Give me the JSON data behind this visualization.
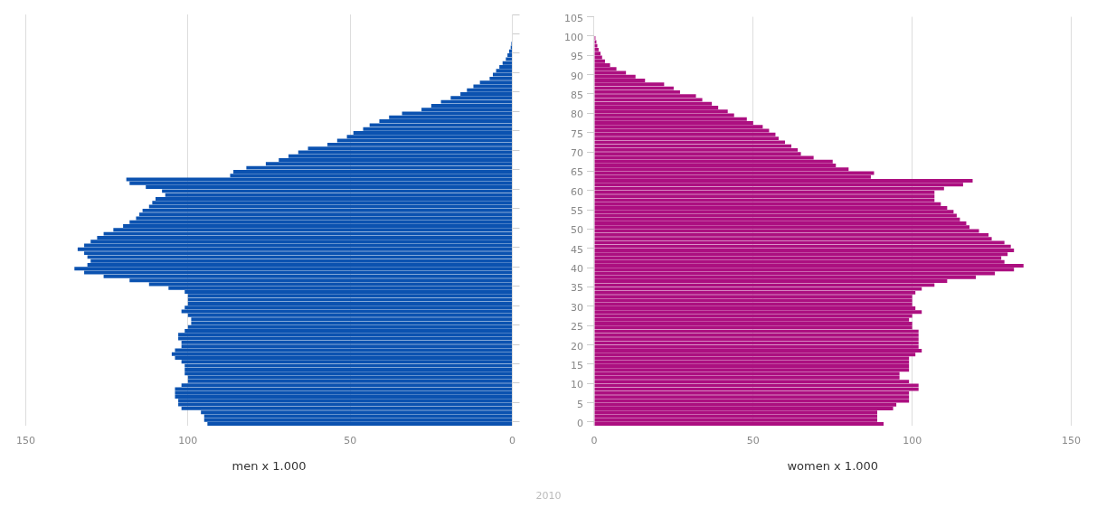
{
  "chart_data": [
    {
      "type": "bar",
      "orientation": "horizontal",
      "xlabel": "men x 1.000",
      "annotations": [
        "2010"
      ],
      "categories": [
        "105",
        null,
        null,
        null,
        null,
        "100",
        null,
        null,
        null,
        null,
        "95",
        null,
        null,
        null,
        null,
        "90",
        null,
        null,
        null,
        null,
        "85",
        null,
        null,
        null,
        null,
        "80",
        null,
        null,
        null,
        null,
        "75",
        null,
        null,
        null,
        null,
        "70",
        null,
        null,
        null,
        null,
        "65",
        null,
        null,
        null,
        null,
        "60",
        null,
        null,
        null,
        null,
        "55",
        null,
        null,
        null,
        null,
        "50",
        null,
        null,
        null,
        null,
        "45",
        null,
        null,
        null,
        null,
        "40",
        null,
        null,
        null,
        null,
        "35",
        null,
        null,
        null,
        null,
        "30",
        null,
        null,
        null,
        null,
        "25",
        null,
        null,
        null,
        null,
        "20",
        null,
        null,
        null,
        null,
        "15",
        null,
        null,
        null,
        null,
        "10",
        null,
        null,
        null,
        null,
        "5",
        null,
        null,
        null,
        null,
        "0"
      ],
      "color": "#0b52b0",
      "values": [
        0,
        0,
        0,
        0,
        0,
        0,
        0,
        0.3,
        0.5,
        1,
        1.5,
        2,
        3,
        4,
        5,
        6,
        7,
        10,
        12,
        14,
        16,
        19,
        22,
        25,
        28,
        34,
        38,
        41,
        44,
        46,
        49,
        51,
        54,
        57,
        63,
        66,
        69,
        72,
        76,
        82,
        86,
        87,
        119,
        118,
        113,
        108,
        107,
        110,
        111,
        112,
        114,
        115,
        116,
        118,
        120,
        123,
        126,
        128,
        130,
        132,
        134,
        132,
        131,
        130,
        131,
        135,
        132,
        126,
        118,
        112,
        106,
        101,
        100,
        100,
        100,
        101,
        102,
        100,
        99,
        99,
        100,
        101,
        103,
        103,
        102,
        102,
        104,
        105,
        104,
        102,
        101,
        101,
        101,
        100,
        100,
        102,
        104,
        104,
        104,
        103,
        103,
        102,
        96,
        95,
        95,
        94
      ],
      "xlim": [
        150,
        0
      ],
      "xticks": [
        150,
        100,
        50,
        0
      ],
      "grid": "x",
      "tick_labels": "x"
    },
    {
      "type": "bar",
      "orientation": "horizontal",
      "xlabel": "women x 1.000",
      "categories": [
        "105",
        null,
        null,
        null,
        null,
        "100",
        null,
        null,
        null,
        null,
        "95",
        null,
        null,
        null,
        null,
        "90",
        null,
        null,
        null,
        null,
        "85",
        null,
        null,
        null,
        null,
        "80",
        null,
        null,
        null,
        null,
        "75",
        null,
        null,
        null,
        null,
        "70",
        null,
        null,
        null,
        null,
        "65",
        null,
        null,
        null,
        null,
        "60",
        null,
        null,
        null,
        null,
        "55",
        null,
        null,
        null,
        null,
        "50",
        null,
        null,
        null,
        null,
        "45",
        null,
        null,
        null,
        null,
        "40",
        null,
        null,
        null,
        null,
        "35",
        null,
        null,
        null,
        null,
        "30",
        null,
        null,
        null,
        null,
        "25",
        null,
        null,
        null,
        null,
        "20",
        null,
        null,
        null,
        null,
        "15",
        null,
        null,
        null,
        null,
        "10",
        null,
        null,
        null,
        null,
        "5",
        null,
        null,
        null,
        null,
        "0"
      ],
      "color": "#ac0f80",
      "values": [
        0,
        0,
        0,
        0,
        0,
        0.4,
        0.7,
        1,
        1.4,
        2,
        2.5,
        3.4,
        5,
        7,
        10,
        13,
        16,
        22,
        25,
        27,
        32,
        34,
        37,
        39,
        42,
        44,
        48,
        50,
        53,
        55,
        57,
        58,
        60,
        62,
        64,
        65,
        69,
        75,
        76,
        80,
        88,
        87,
        119,
        116,
        110,
        107,
        107,
        107,
        109,
        111,
        113,
        114,
        115,
        117,
        118,
        121,
        124,
        125,
        129,
        131,
        132,
        130,
        128,
        129,
        135,
        132,
        126,
        120,
        111,
        107,
        103,
        101,
        100,
        100,
        100,
        101,
        103,
        100,
        99,
        100,
        100,
        102,
        102,
        102,
        102,
        102,
        103,
        101,
        99,
        99,
        99,
        99,
        96,
        96,
        99,
        102,
        102,
        99,
        99,
        99,
        95,
        94,
        89,
        89,
        89,
        91
      ],
      "xlim": [
        0,
        150
      ],
      "xticks": [
        0,
        50,
        100,
        150
      ],
      "grid": "x"
    }
  ]
}
